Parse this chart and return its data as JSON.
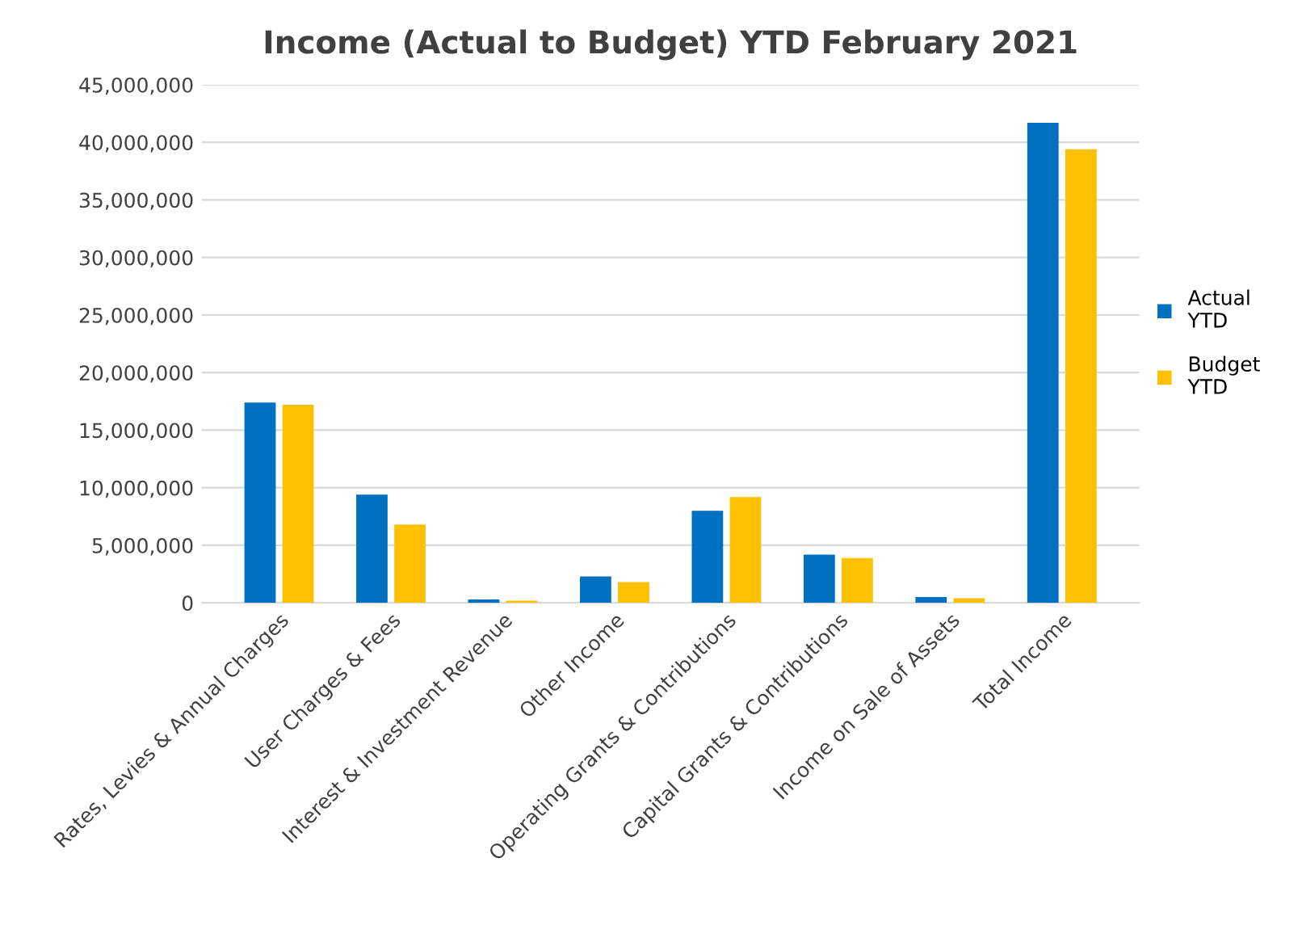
{
  "chart_data": {
    "type": "bar",
    "title": "Income (Actual to Budget) YTD February 2021",
    "categories": [
      "Rates, Levies & Annual Charges",
      "User Charges & Fees",
      "Interest & Investment Revenue",
      "Other Income",
      "Operating Grants & Contributions",
      "Capital Grants & Contributions",
      "Income on Sale of Assets",
      "Total Income"
    ],
    "series": [
      {
        "name": "Actual YTD",
        "color": "#0070c0",
        "values": [
          17400000,
          9400000,
          300000,
          2300000,
          8000000,
          4200000,
          500000,
          41700000
        ]
      },
      {
        "name": "Budget YTD",
        "color": "#ffc000",
        "values": [
          17200000,
          6800000,
          200000,
          1800000,
          9200000,
          3900000,
          400000,
          39400000
        ]
      }
    ],
    "ylim": [
      0,
      45000000
    ],
    "yticks": [
      {
        "value": 0,
        "label": "0"
      },
      {
        "value": 5000000,
        "label": "5,000,000"
      },
      {
        "value": 10000000,
        "label": "10,000,000"
      },
      {
        "value": 15000000,
        "label": "15,000,000"
      },
      {
        "value": 20000000,
        "label": "20,000,000"
      },
      {
        "value": 25000000,
        "label": "25,000,000"
      },
      {
        "value": 30000000,
        "label": "30,000,000"
      },
      {
        "value": 35000000,
        "label": "35,000,000"
      },
      {
        "value": 40000000,
        "label": "40,000,000"
      },
      {
        "value": 45000000,
        "label": "45,000,000"
      }
    ],
    "grid": "y",
    "legend": "right"
  }
}
